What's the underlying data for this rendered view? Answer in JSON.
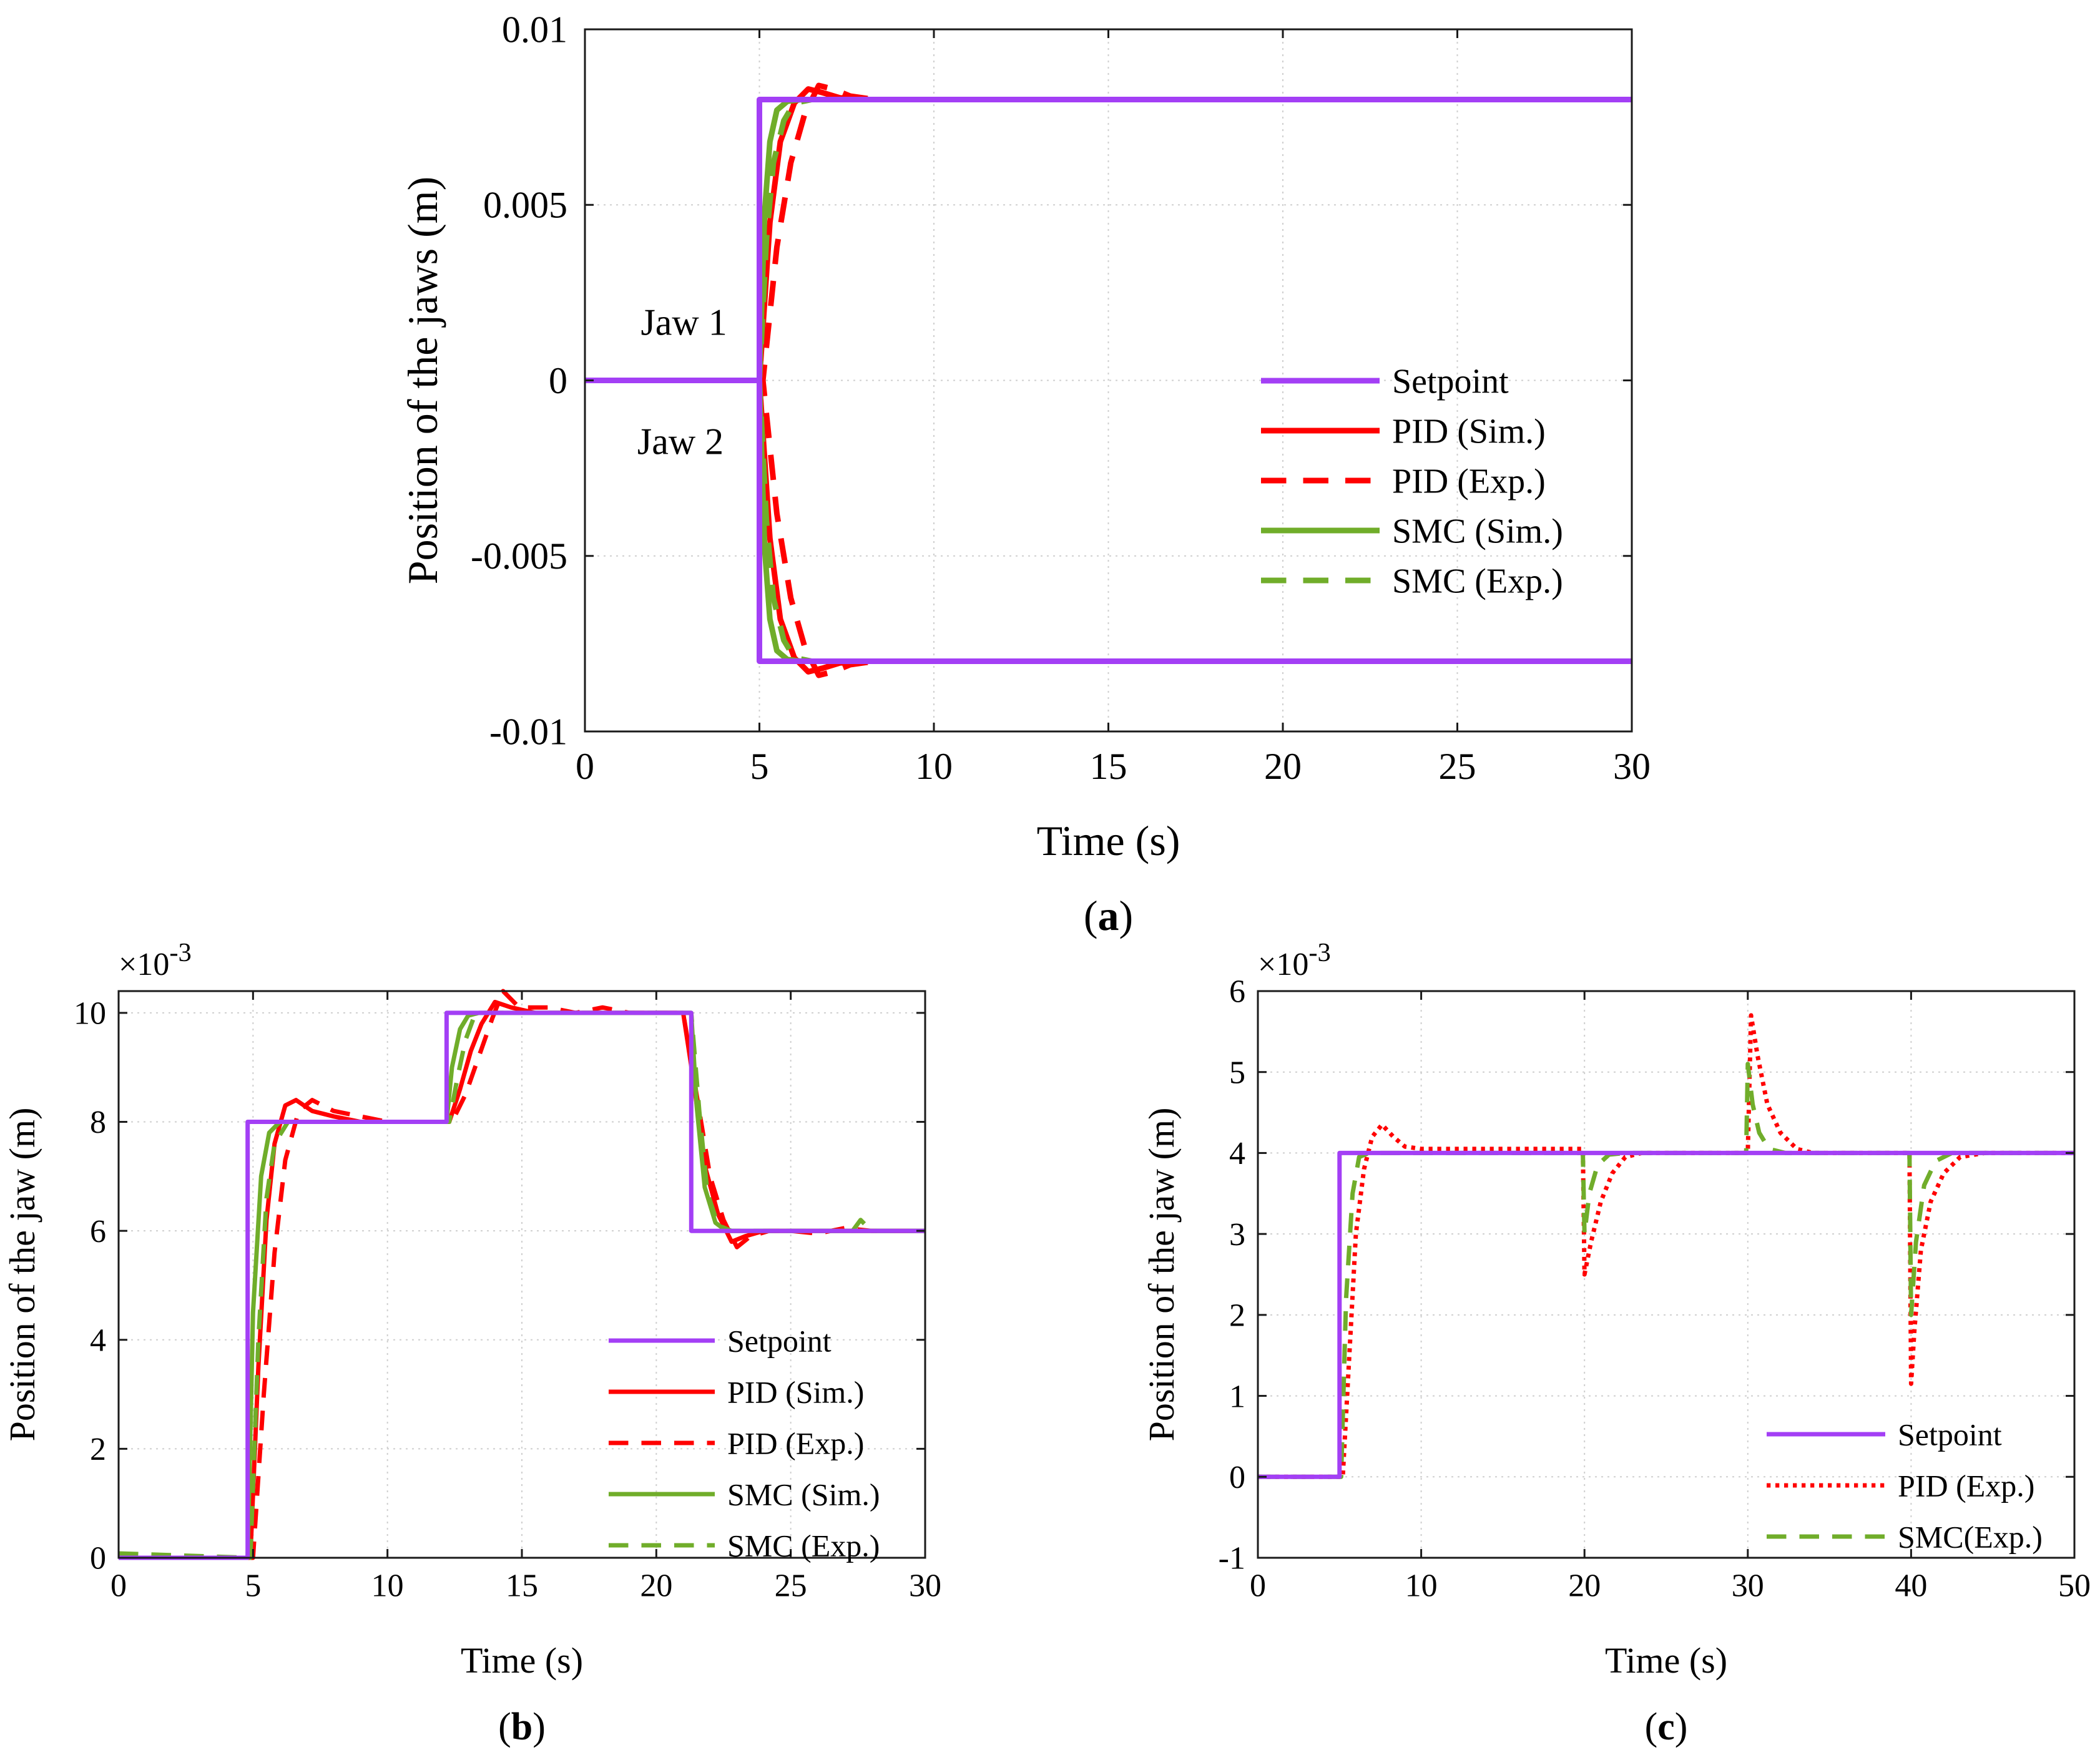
{
  "figure": {
    "colors": {
      "setpoint": "#a33ff5",
      "pid": "#ff0000",
      "smc": "#70ad2a",
      "grid": "#cfcfcf",
      "axis": "#1a1a1a"
    }
  },
  "chart_data": [
    {
      "id": "a",
      "type": "line",
      "caption_letter": "a",
      "xlabel": "Time (s)",
      "ylabel": "Position of the jaws (m)",
      "xlim": [
        0,
        30
      ],
      "ylim": [
        -0.01,
        0.01
      ],
      "xticks": [
        0,
        5,
        10,
        15,
        20,
        25,
        30
      ],
      "xtick_labels": [
        "0",
        "5",
        "10",
        "15",
        "20",
        "25",
        "30"
      ],
      "yticks": [
        -0.01,
        -0.005,
        0,
        0.005,
        0.01
      ],
      "ytick_labels": [
        "-0.01",
        "-0.005",
        "0",
        "0.005",
        "0.01"
      ],
      "exponent_label": "",
      "grid": true,
      "legend_position": "bottom-right",
      "annotations": [
        {
          "text": "Jaw 1",
          "x": 1.6,
          "y": 0.0013
        },
        {
          "text": "Jaw 2",
          "x": 1.5,
          "y": -0.0021
        }
      ],
      "series": [
        {
          "name": "Setpoint",
          "style": "solid",
          "color": "setpoint",
          "x": [
            0,
            5,
            5,
            30
          ],
          "y": [
            0,
            0,
            0.008,
            0.008
          ]
        },
        {
          "name": "PID (Sim.)",
          "style": "solid",
          "color": "pid",
          "x": [
            0,
            5,
            5.3,
            5.6,
            6.0,
            6.4,
            6.8,
            7.3,
            8,
            30
          ],
          "y": [
            0,
            0,
            0.0045,
            0.0068,
            0.0079,
            0.0083,
            0.0082,
            0.00805,
            0.008,
            0.008
          ]
        },
        {
          "name": "PID (Exp.)",
          "style": "dashed",
          "color": "pid",
          "x": [
            0,
            5.1,
            5.5,
            5.9,
            6.3,
            6.7,
            7.1,
            7.6,
            8.3,
            30
          ],
          "y": [
            0,
            0,
            0.0038,
            0.0062,
            0.0076,
            0.0084,
            0.0083,
            0.0081,
            0.008,
            0.008
          ]
        },
        {
          "name": "SMC (Sim.)",
          "style": "solid",
          "color": "smc",
          "x": [
            0,
            5,
            5.15,
            5.3,
            5.5,
            5.8,
            6.2,
            30
          ],
          "y": [
            0,
            0,
            0.0048,
            0.0068,
            0.0077,
            0.00795,
            0.008,
            0.008
          ]
        },
        {
          "name": "SMC (Exp.)",
          "style": "dashed",
          "color": "smc",
          "x": [
            0,
            5,
            5.2,
            5.4,
            5.7,
            6.0,
            6.5,
            30
          ],
          "y": [
            0,
            0,
            0.004,
            0.0062,
            0.0074,
            0.0079,
            0.008,
            0.008
          ]
        },
        {
          "name": "Setpoint",
          "legend": false,
          "style": "solid",
          "color": "setpoint",
          "x": [
            0,
            5,
            5,
            30
          ],
          "y": [
            0,
            0,
            -0.008,
            -0.008
          ]
        },
        {
          "name": "PID (Sim.)",
          "legend": false,
          "style": "solid",
          "color": "pid",
          "x": [
            0,
            5,
            5.3,
            5.6,
            6.0,
            6.4,
            6.8,
            7.3,
            8,
            30
          ],
          "y": [
            0,
            0,
            -0.0045,
            -0.0068,
            -0.0079,
            -0.0083,
            -0.0082,
            -0.00805,
            -0.008,
            -0.008
          ]
        },
        {
          "name": "PID (Exp.)",
          "legend": false,
          "style": "dashed",
          "color": "pid",
          "x": [
            0,
            5.1,
            5.5,
            5.9,
            6.3,
            6.7,
            7.1,
            7.6,
            8.3,
            30
          ],
          "y": [
            0,
            0,
            -0.0038,
            -0.0062,
            -0.0076,
            -0.0084,
            -0.0083,
            -0.0081,
            -0.008,
            -0.008
          ]
        },
        {
          "name": "SMC (Sim.)",
          "legend": false,
          "style": "solid",
          "color": "smc",
          "x": [
            0,
            5,
            5.15,
            5.3,
            5.5,
            5.8,
            6.2,
            30
          ],
          "y": [
            0,
            0,
            -0.0048,
            -0.0068,
            -0.0077,
            -0.00795,
            -0.008,
            -0.008
          ]
        },
        {
          "name": "SMC (Exp.)",
          "legend": false,
          "style": "dashed",
          "color": "smc",
          "x": [
            0,
            5,
            5.2,
            5.4,
            5.7,
            6.0,
            6.5,
            30
          ],
          "y": [
            0,
            0,
            -0.004,
            -0.0062,
            -0.0074,
            -0.0079,
            -0.008,
            -0.008
          ]
        }
      ]
    },
    {
      "id": "b",
      "type": "line",
      "caption_letter": "b",
      "xlabel": "Time (s)",
      "ylabel": "Position of the jaw (m)",
      "xlim": [
        0,
        30
      ],
      "ylim": [
        0,
        10.4
      ],
      "xticks": [
        0,
        5,
        10,
        15,
        20,
        25,
        30
      ],
      "xtick_labels": [
        "0",
        "5",
        "10",
        "15",
        "20",
        "25",
        "30"
      ],
      "yticks": [
        0,
        2,
        4,
        6,
        8,
        10
      ],
      "ytick_labels": [
        "0",
        "2",
        "4",
        "6",
        "8",
        "10"
      ],
      "exponent_label": "×10",
      "exponent_power": "-3",
      "grid": true,
      "legend_position": "bottom-right",
      "annotations": [],
      "series": [
        {
          "name": "Setpoint",
          "style": "solid",
          "color": "setpoint",
          "x": [
            0,
            4.8,
            4.8,
            12.2,
            12.2,
            21.3,
            21.3,
            30
          ],
          "y": [
            0,
            0,
            8,
            8,
            10,
            10,
            6,
            6
          ]
        },
        {
          "name": "PID (Sim.)",
          "style": "solid",
          "color": "pid",
          "x": [
            0,
            4.9,
            5.2,
            5.5,
            5.8,
            6.2,
            6.6,
            7.2,
            8.0,
            9.0,
            10.0,
            12.3,
            12.7,
            13.1,
            13.5,
            14.0,
            14.6,
            15.5,
            17,
            21,
            21.4,
            21.8,
            22.3,
            22.8,
            23.3,
            24.0,
            25,
            30
          ],
          "y": [
            0,
            0,
            3.5,
            6.2,
            7.6,
            8.3,
            8.4,
            8.2,
            8.1,
            8.0,
            8.0,
            8.0,
            8.6,
            9.3,
            9.8,
            10.2,
            10.1,
            10.0,
            10.0,
            10.0,
            8.7,
            7.2,
            6.3,
            5.8,
            5.9,
            6.0,
            6.0,
            6.0
          ]
        },
        {
          "name": "PID (Exp.)",
          "style": "dashed",
          "color": "pid",
          "x": [
            0,
            5.0,
            5.4,
            5.8,
            6.2,
            6.7,
            7.2,
            8.0,
            9.0,
            10,
            12.4,
            12.9,
            13.4,
            13.9,
            14.3,
            14.9,
            16,
            17,
            18,
            19,
            20,
            21,
            21.5,
            22,
            22.5,
            23,
            23.5,
            24.2,
            25,
            26,
            27,
            28,
            30
          ],
          "y": [
            0,
            0,
            3.0,
            5.6,
            7.3,
            8.2,
            8.4,
            8.2,
            8.1,
            8.0,
            8.0,
            8.5,
            9.2,
            9.9,
            10.4,
            10.1,
            10.1,
            10.0,
            10.1,
            10.0,
            10.0,
            10.0,
            8.5,
            7.0,
            6.2,
            5.7,
            5.9,
            6.0,
            6.0,
            5.95,
            6.05,
            6.0,
            6.0
          ]
        },
        {
          "name": "SMC (Sim.)",
          "style": "solid",
          "color": "smc",
          "x": [
            0,
            4.8,
            5.0,
            5.3,
            5.6,
            6.0,
            12.2,
            12.4,
            12.7,
            13.0,
            13.4,
            21.3,
            21.5,
            21.8,
            22.2,
            22.6,
            30
          ],
          "y": [
            0,
            0,
            4.5,
            7.0,
            7.8,
            8.0,
            8.0,
            9.0,
            9.7,
            9.95,
            10.0,
            10.0,
            8.3,
            6.8,
            6.15,
            6.0,
            6.0
          ]
        },
        {
          "name": "SMC (Exp.)",
          "style": "dashed",
          "color": "smc",
          "x": [
            0,
            4.9,
            5.2,
            5.5,
            5.8,
            6.3,
            12.3,
            12.6,
            12.9,
            13.2,
            13.6,
            21.3,
            21.6,
            21.9,
            22.3,
            22.8,
            27.3,
            27.6,
            28,
            30
          ],
          "y": [
            0.08,
            0,
            4.0,
            6.6,
            7.6,
            8.0,
            8.0,
            8.8,
            9.5,
            9.9,
            10.0,
            10.0,
            8.2,
            6.7,
            6.1,
            6.0,
            6.0,
            6.2,
            6.0,
            6.0
          ]
        }
      ]
    },
    {
      "id": "c",
      "type": "line",
      "caption_letter": "c",
      "xlabel": "Time (s)",
      "ylabel": "Position of the jaw (m)",
      "xlim": [
        0,
        50
      ],
      "ylim": [
        -1,
        6
      ],
      "xticks": [
        0,
        10,
        20,
        30,
        40,
        50
      ],
      "xtick_labels": [
        "0",
        "10",
        "20",
        "30",
        "40",
        "50"
      ],
      "yticks": [
        -1,
        0,
        1,
        2,
        3,
        4,
        5,
        6
      ],
      "ytick_labels": [
        "-1",
        "0",
        "1",
        "2",
        "3",
        "4",
        "5",
        "6"
      ],
      "exponent_label": "×10",
      "exponent_power": "-3",
      "grid": true,
      "legend_position": "bottom-right",
      "annotations": [],
      "series": [
        {
          "name": "Setpoint",
          "style": "solid",
          "color": "setpoint",
          "x": [
            0,
            5,
            5,
            50
          ],
          "y": [
            0,
            0,
            4,
            4
          ]
        },
        {
          "name": "PID (Exp.)",
          "style": "dotted",
          "color": "pid",
          "x": [
            0,
            5.2,
            5.6,
            6.0,
            6.5,
            7.0,
            7.6,
            8.3,
            9.0,
            10,
            19.9,
            20.0,
            20.4,
            21.0,
            21.7,
            22.5,
            23.5,
            30.0,
            30.2,
            30.6,
            31.2,
            32.0,
            33.0,
            34.0,
            39.9,
            40.0,
            40.2,
            40.6,
            41.2,
            42.0,
            43.0,
            44.5,
            50
          ],
          "y": [
            0,
            0,
            1.5,
            3.0,
            3.8,
            4.2,
            4.35,
            4.2,
            4.08,
            4.05,
            4.05,
            2.5,
            2.9,
            3.4,
            3.75,
            3.95,
            4.0,
            4.0,
            5.7,
            5.2,
            4.6,
            4.25,
            4.05,
            4.0,
            4.0,
            1.15,
            1.8,
            2.8,
            3.4,
            3.75,
            3.95,
            4.0,
            4.0
          ]
        },
        {
          "name": "SMC(Exp.)",
          "style": "dashed",
          "color": "smc",
          "x": [
            0,
            5.1,
            5.4,
            5.8,
            6.2,
            6.8,
            19.9,
            20.0,
            20.3,
            20.8,
            21.5,
            22.5,
            29.9,
            30.0,
            30.3,
            30.7,
            31.3,
            32.3,
            39.9,
            40.0,
            40.3,
            40.8,
            41.5,
            42.5,
            50
          ],
          "y": [
            0,
            0,
            2.2,
            3.5,
            3.95,
            4.0,
            4.0,
            3.0,
            3.5,
            3.85,
            3.98,
            4.0,
            4.0,
            5.1,
            4.6,
            4.25,
            4.05,
            4.0,
            4.0,
            2.0,
            2.9,
            3.6,
            3.9,
            4.0,
            4.0
          ]
        }
      ]
    }
  ]
}
